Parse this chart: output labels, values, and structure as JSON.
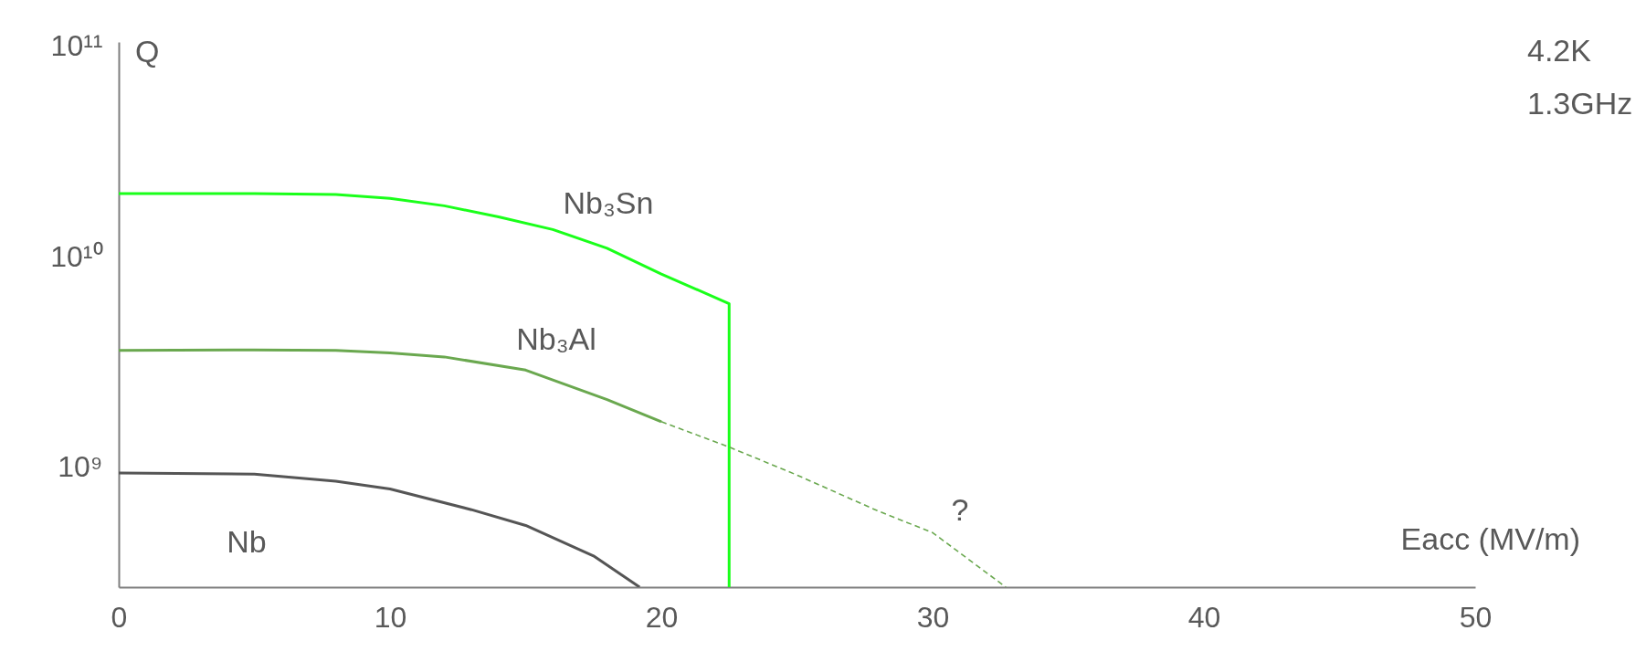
{
  "chart_data": {
    "type": "line",
    "xlabel": "Eacc (MV/m)",
    "ylabel": "Q",
    "log": "y",
    "grid": false,
    "xlim": [
      0,
      50
    ],
    "xticks": [
      0,
      10,
      20,
      30,
      40,
      50
    ],
    "ylim": [
      270000000.0,
      105000000000.0
    ],
    "yticks": [
      {
        "value": 1000000000.0,
        "label": "10⁹"
      },
      {
        "value": 10000000000.0,
        "label": "10¹⁰"
      },
      {
        "value": 100000000000.0,
        "label": "10¹¹"
      }
    ],
    "series": [
      {
        "name": "Nb₃Sn",
        "color": "#1aff1a",
        "line_style": "solid",
        "x": [
          0,
          5,
          8,
          10,
          12,
          14,
          16,
          18,
          20,
          22.5,
          22.5
        ],
        "values": [
          20000000000.0,
          20000000000.0,
          19800000000.0,
          19000000000.0,
          17500000000.0,
          15500000000.0,
          13500000000.0,
          11000000000.0,
          8300000000.0,
          6000000000.0,
          270000000.0
        ]
      },
      {
        "name": "Nb₃Al",
        "color": "#6aa84f",
        "line_style": "solid",
        "x": [
          0,
          5,
          8,
          10,
          12,
          15,
          18,
          20
        ],
        "values": [
          3600000000.0,
          3620000000.0,
          3600000000.0,
          3500000000.0,
          3350000000.0,
          2900000000.0,
          2100000000.0,
          1650000000.0
        ]
      },
      {
        "color": "#6aa84f",
        "line_style": "dashed",
        "x": [
          20,
          22.5,
          25,
          28,
          30,
          32.7
        ],
        "values": [
          1650000000.0,
          1250000000.0,
          920000000.0,
          620000000.0,
          490000000.0,
          270000000.0
        ]
      },
      {
        "name": "Nb",
        "color": "#555555",
        "line_style": "solid",
        "x": [
          0,
          5,
          8,
          10,
          13,
          15,
          17.5,
          19.2
        ],
        "values": [
          940000000.0,
          930000000.0,
          860000000.0,
          790000000.0,
          630000000.0,
          530000000.0,
          380000000.0,
          270000000.0
        ]
      }
    ],
    "annotations": [
      "?",
      "4.2K",
      "1.3GHz"
    ]
  }
}
